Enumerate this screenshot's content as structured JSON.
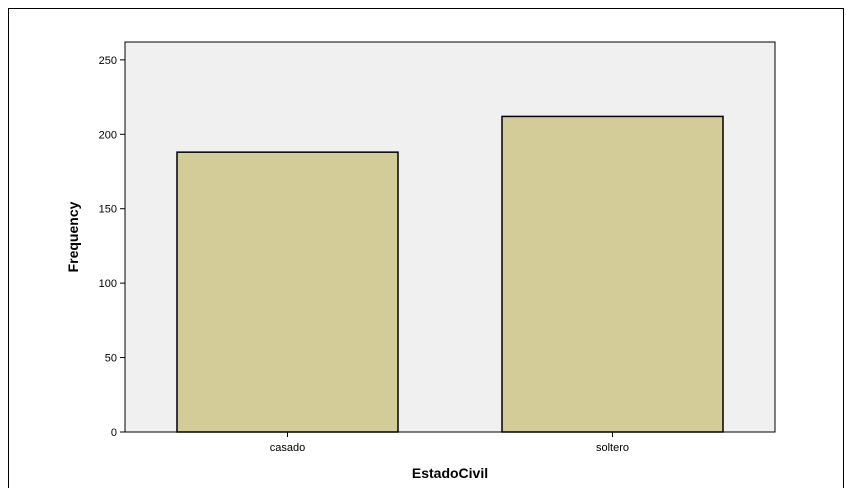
{
  "chart_data": {
    "type": "bar",
    "title": "",
    "xlabel": "EstadoCivil",
    "ylabel": "Frequency",
    "categories": [
      "casado",
      "soltero"
    ],
    "values": [
      188,
      212
    ],
    "ylim": [
      0,
      262
    ],
    "yticks": [
      0,
      50,
      100,
      150,
      200,
      250
    ],
    "grid": false,
    "legend": "none",
    "colors": {
      "bar_fill": "#d3cc98",
      "bar_stroke": "#000000",
      "plot_background": "#f0f0f0"
    }
  }
}
